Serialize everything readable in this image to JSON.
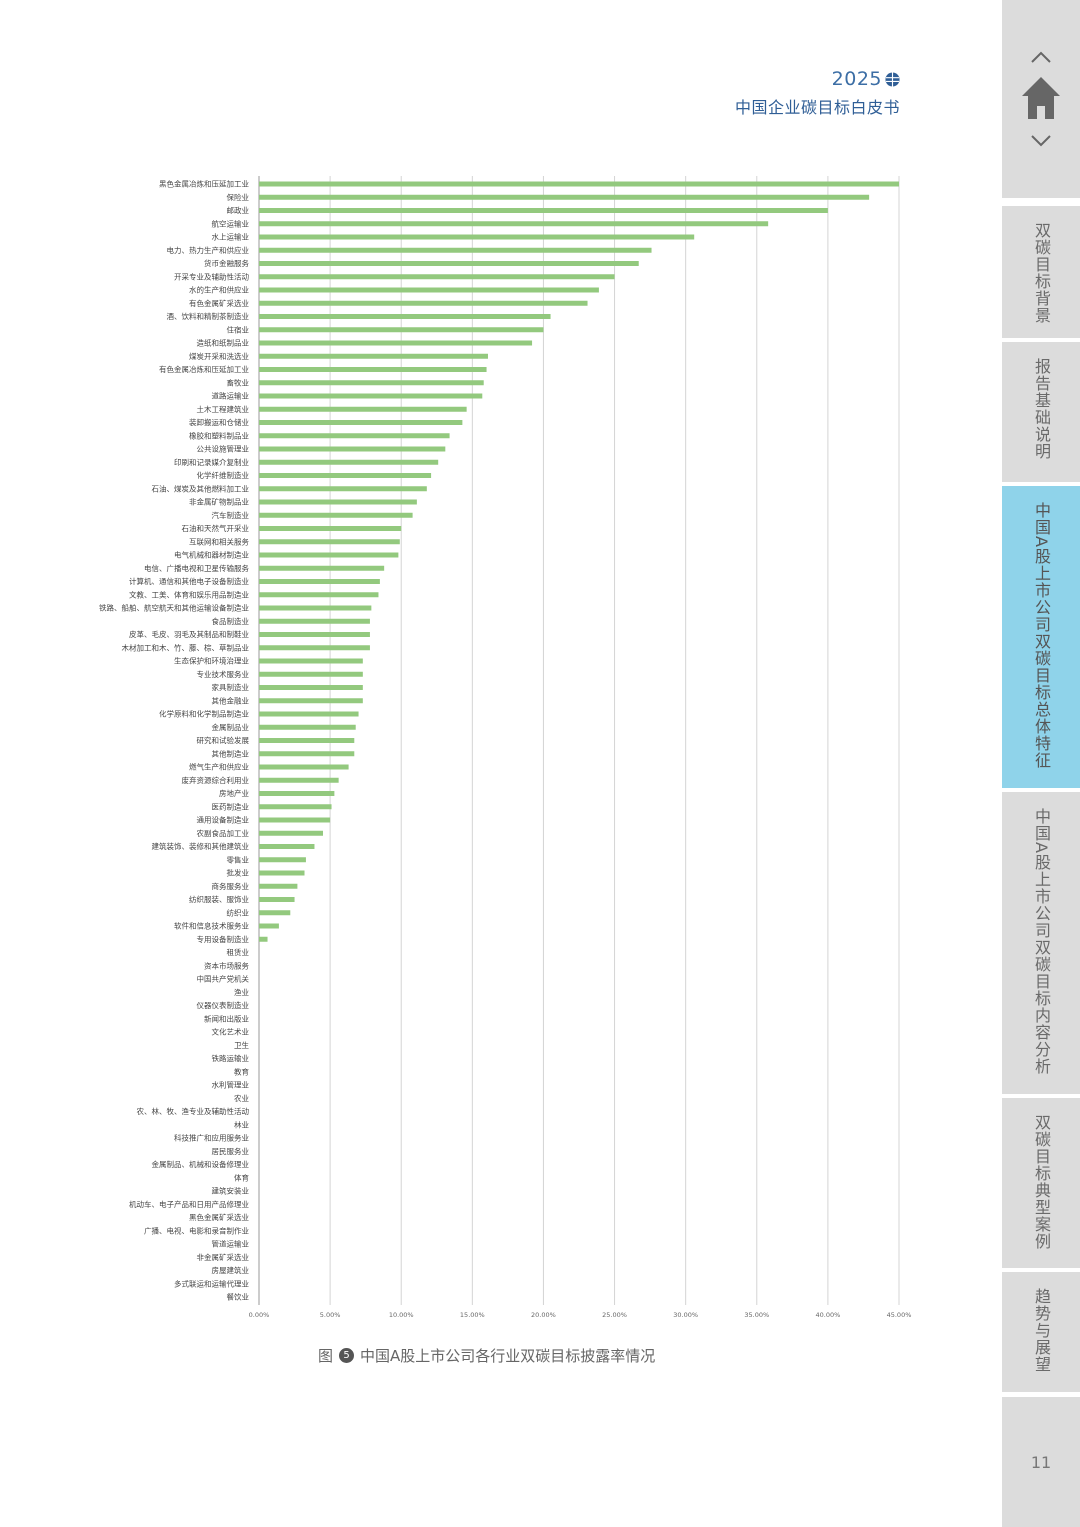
{
  "header": {
    "year": "2025",
    "title": "中国企业碳目标白皮书"
  },
  "caption": {
    "badge": "5",
    "prefix": "图",
    "text": "中国A股上市公司各行业双碳目标披露率情况"
  },
  "sidebar": {
    "tabs": [
      {
        "label": "双碳目标背景",
        "active": false
      },
      {
        "label": "报告基础说明",
        "active": false
      },
      {
        "label": "中国A股上市公司双碳目标总体特征",
        "active": true
      },
      {
        "label": "中国A股上市公司双碳目标内容分析",
        "active": false
      },
      {
        "label": "双碳目标典型案例",
        "active": false
      },
      {
        "label": "趋势与展望",
        "active": false
      }
    ],
    "page_number": "11"
  },
  "colors": {
    "bar": "#93c97e",
    "accent": "#8fd3ea",
    "title": "#2f5e96"
  },
  "chart_data": {
    "type": "bar",
    "orientation": "horizontal",
    "xlim": [
      0,
      45
    ],
    "x_ticks": [
      "0.00%",
      "5.00%",
      "10.00%",
      "15.00%",
      "20.00%",
      "25.00%",
      "30.00%",
      "35.00%",
      "40.00%",
      "45.00%"
    ],
    "grid": true,
    "categories": [
      "黑色金属冶炼和压延加工业",
      "保险业",
      "邮政业",
      "航空运输业",
      "水上运输业",
      "电力、热力生产和供应业",
      "货币金融服务",
      "开采专业及辅助性活动",
      "水的生产和供应业",
      "有色金属矿采选业",
      "酒、饮料和精制茶制造业",
      "住宿业",
      "造纸和纸制品业",
      "煤炭开采和洗选业",
      "有色金属冶炼和压延加工业",
      "畜牧业",
      "道路运输业",
      "土木工程建筑业",
      "装卸搬运和仓储业",
      "橡胶和塑料制品业",
      "公共设施管理业",
      "印刷和记录媒介复制业",
      "化学纤维制造业",
      "石油、煤炭及其他燃料加工业",
      "非金属矿物制品业",
      "汽车制造业",
      "石油和天然气开采业",
      "互联网和相关服务",
      "电气机械和器材制造业",
      "电信、广播电视和卫星传输服务",
      "计算机、通信和其他电子设备制造业",
      "文教、工美、体育和娱乐用品制造业",
      "铁路、船舶、航空航天和其他运输设备制造业",
      "食品制造业",
      "皮革、毛皮、羽毛及其制品和制鞋业",
      "木材加工和木、竹、藤、棕、草制品业",
      "生态保护和环境治理业",
      "专业技术服务业",
      "家具制造业",
      "其他金融业",
      "化学原料和化学制品制造业",
      "金属制品业",
      "研究和试验发展",
      "其他制造业",
      "燃气生产和供应业",
      "废弃资源综合利用业",
      "房地产业",
      "医药制造业",
      "通用设备制造业",
      "农副食品加工业",
      "建筑装饰、装修和其他建筑业",
      "零售业",
      "批发业",
      "商务服务业",
      "纺织服装、服饰业",
      "纺织业",
      "软件和信息技术服务业",
      "专用设备制造业",
      "租赁业",
      "资本市场服务",
      "中国共产党机关",
      "渔业",
      "仪器仪表制造业",
      "新闻和出版业",
      "文化艺术业",
      "卫生",
      "铁路运输业",
      "教育",
      "水利管理业",
      "农业",
      "农、林、牧、渔专业及辅助性活动",
      "林业",
      "科技推广和应用服务业",
      "居民服务业",
      "金属制品、机械和设备修理业",
      "体育",
      "建筑安装业",
      "机动车、电子产品和日用产品修理业",
      "黑色金属矿采选业",
      "广播、电视、电影和录音制作业",
      "管道运输业",
      "非金属矿采选业",
      "房屋建筑业",
      "多式联运和运输代理业",
      "餐饮业"
    ],
    "values": [
      45.0,
      42.9,
      40.0,
      35.8,
      30.6,
      27.6,
      26.7,
      25.0,
      23.9,
      23.1,
      20.5,
      20.0,
      19.2,
      16.1,
      16.0,
      15.8,
      15.7,
      14.6,
      14.3,
      13.4,
      13.1,
      12.6,
      12.1,
      11.8,
      11.1,
      10.8,
      10.0,
      9.9,
      9.8,
      8.8,
      8.5,
      8.4,
      7.9,
      7.8,
      7.8,
      7.8,
      7.3,
      7.3,
      7.3,
      7.3,
      7.0,
      6.8,
      6.7,
      6.7,
      6.3,
      5.6,
      5.3,
      5.1,
      5.0,
      4.5,
      3.9,
      3.3,
      3.2,
      2.7,
      2.5,
      2.2,
      1.4,
      0.6,
      0,
      0,
      0,
      0,
      0,
      0,
      0,
      0,
      0,
      0,
      0,
      0,
      0,
      0,
      0,
      0,
      0,
      0,
      0,
      0,
      0,
      0,
      0,
      0,
      0,
      0,
      0
    ]
  }
}
